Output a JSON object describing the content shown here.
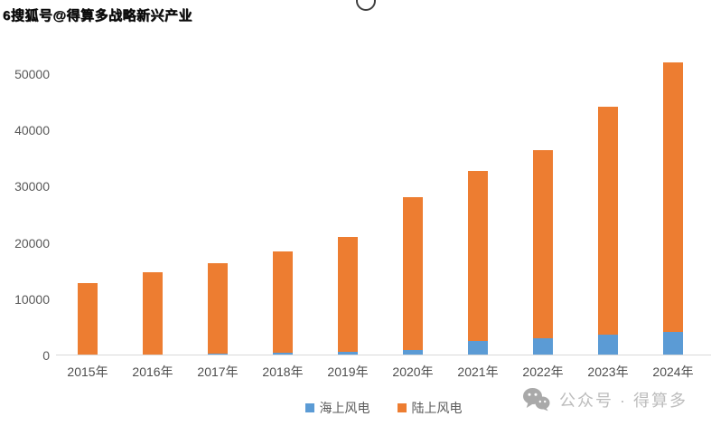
{
  "watermarks": {
    "top_left": "6搜狐号@得算多战略新兴产业",
    "bottom_right": "公众号 · 得算多"
  },
  "chart_data": {
    "type": "bar",
    "stacked": true,
    "categories": [
      "2015年",
      "2016年",
      "2017年",
      "2018年",
      "2019年",
      "2020年",
      "2021年",
      "2022年",
      "2023年",
      "2024年"
    ],
    "series": [
      {
        "name": "海上风电",
        "color": "#5B9BD5",
        "values": [
          100,
          160,
          280,
          440,
          590,
          900,
          2640,
          3050,
          3730,
          4130
        ]
      },
      {
        "name": "陆上风电",
        "color": "#ED7D31",
        "values": [
          12830,
          14700,
          16090,
          17980,
          20410,
          27250,
          30210,
          33490,
          40410,
          47940
        ]
      }
    ],
    "stack_totals": [
      12930,
      14860,
      16370,
      18420,
      21000,
      28150,
      32850,
      36540,
      44140,
      52070
    ],
    "ylim": [
      0,
      50000
    ],
    "yticks": [
      0,
      10000,
      20000,
      30000,
      40000,
      50000
    ],
    "xlabel": "",
    "ylabel": "",
    "grid": false,
    "legend_position": "bottom",
    "axis_text_color": "#595959",
    "baseline_color": "#d9d9d9"
  }
}
